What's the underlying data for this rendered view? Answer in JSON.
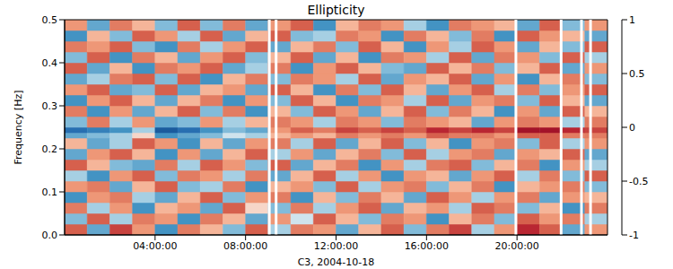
{
  "chart_data": {
    "type": "heatmap",
    "title": "Ellipticity",
    "x_label": "C3, 2004-10-18",
    "y_label": "Frequency [Hz]",
    "xlim": [
      0,
      24
    ],
    "xticks": [
      {
        "value": 4,
        "label": "04:00:00"
      },
      {
        "value": 8,
        "label": "08:00:00"
      },
      {
        "value": 12,
        "label": "12:00:00"
      },
      {
        "value": 16,
        "label": "16:00:00"
      },
      {
        "value": 20,
        "label": "20:00:00"
      }
    ],
    "ylim": [
      0,
      0.5
    ],
    "yticks": [
      {
        "value": 0,
        "label": "0.0"
      },
      0.1,
      0.2,
      0.3,
      0.4,
      0.5
    ],
    "colorbar": {
      "range": [
        -1,
        1
      ],
      "ticks": [
        -1,
        -0.5,
        0,
        0.5,
        1
      ]
    },
    "data_gaps": [
      9.05,
      9.35,
      19.95,
      21.95,
      22.85,
      23.25
    ],
    "cells": {
      "x_edges": [
        0,
        1,
        2,
        3,
        4,
        5,
        6,
        7,
        8,
        9,
        10,
        11,
        12,
        13,
        14,
        15,
        16,
        17,
        18,
        19,
        20,
        21,
        22,
        23,
        24
      ],
      "y_edges": [
        0,
        0.025,
        0.05,
        0.075,
        0.1,
        0.125,
        0.15,
        0.175,
        0.2,
        0.225,
        0.2375,
        0.25,
        0.275,
        0.3,
        0.325,
        0.35,
        0.375,
        0.4,
        0.425,
        0.45,
        0.475,
        0.5
      ],
      "values": [
        [
          0.5,
          -0.4,
          0.6,
          0.3,
          -0.5,
          0.4,
          0.2,
          -0.3,
          0.5,
          -0.2,
          0.4,
          0.3,
          -0.4,
          0.2,
          0.5,
          -0.3,
          0.4,
          0.6,
          -0.2,
          0.3,
          0.7,
          0.5,
          -0.4,
          0.3
        ],
        [
          -0.3,
          0.5,
          -0.2,
          0.4,
          0.3,
          -0.5,
          0.4,
          0.2,
          -0.4,
          0.3,
          -0.1,
          0.5,
          0.2,
          -0.3,
          0.4,
          0.3,
          -0.5,
          0.2,
          0.4,
          -0.3,
          0.5,
          0.3,
          0.4,
          -0.2
        ],
        [
          0.4,
          -0.2,
          0.3,
          -0.5,
          0.2,
          0.3,
          -0.4,
          0.5,
          0.1,
          -0.3,
          0.4,
          -0.2,
          0.3,
          0.5,
          -0.4,
          0.2,
          0.3,
          -0.2,
          0.5,
          0.4,
          -0.3,
          0.2,
          -0.5,
          0.4
        ],
        [
          -0.5,
          0.3,
          0.4,
          -0.2,
          -0.4,
          0.2,
          0.5,
          -0.3,
          0.3,
          0.4,
          -0.5,
          0.2,
          -0.3,
          0.4,
          0.2,
          -0.4,
          0.5,
          0.3,
          -0.2,
          0.3,
          0.4,
          -0.4,
          0.3,
          0.2
        ],
        [
          0.3,
          0.4,
          -0.4,
          0.2,
          0.5,
          -0.3,
          -0.2,
          0.4,
          -0.5,
          0.2,
          0.3,
          -0.3,
          0.5,
          -0.2,
          0.3,
          0.4,
          -0.3,
          0.2,
          0.4,
          -0.5,
          0.2,
          0.3,
          0.4,
          -0.3
        ],
        [
          -0.2,
          -0.5,
          0.3,
          0.5,
          -0.3,
          0.4,
          0.3,
          -0.2,
          0.4,
          -0.4,
          0.2,
          0.5,
          -0.2,
          0.3,
          -0.5,
          0.3,
          0.2,
          -0.4,
          0.3,
          0.5,
          -0.2,
          0.4,
          -0.3,
          0.5
        ],
        [
          0.5,
          0.2,
          -0.3,
          -0.4,
          0.4,
          -0.2,
          0.5,
          0.3,
          -0.3,
          0.5,
          -0.4,
          0.2,
          0.4,
          -0.5,
          0.3,
          -0.2,
          0.4,
          0.5,
          -0.3,
          0.2,
          0.4,
          -0.5,
          0.3,
          -0.2
        ],
        [
          -0.4,
          0.3,
          0.5,
          0.2,
          -0.5,
          0.3,
          -0.4,
          0.2,
          0.5,
          -0.2,
          0.3,
          -0.4,
          0.2,
          0.4,
          -0.3,
          0.5,
          -0.2,
          0.3,
          0.4,
          -0.4,
          0.3,
          0.2,
          0.5,
          -0.4
        ],
        [
          0.2,
          -0.4,
          -0.2,
          0.5,
          0.3,
          -0.5,
          0.2,
          -0.4,
          0.3,
          0.4,
          -0.2,
          0.5,
          -0.4,
          0.2,
          0.5,
          -0.3,
          0.2,
          -0.5,
          0.3,
          0.4,
          -0.3,
          0.5,
          -0.2,
          0.3
        ],
        [
          -0.4,
          -0.3,
          -0.2,
          0.1,
          -0.5,
          -0.4,
          -0.3,
          -0.1,
          -0.2,
          0.2,
          0.3,
          0.2,
          0.4,
          0.3,
          0.4,
          0.3,
          0.5,
          0.4,
          0.4,
          0.3,
          0.5,
          0.5,
          0.4,
          0.4
        ],
        [
          -0.7,
          -0.6,
          -0.5,
          -0.2,
          -0.8,
          -0.7,
          -0.5,
          -0.3,
          -0.4,
          0.3,
          0.5,
          0.4,
          0.6,
          0.5,
          0.6,
          0.5,
          0.7,
          0.6,
          0.7,
          0.6,
          0.8,
          0.8,
          0.7,
          0.6
        ],
        [
          -0.3,
          0.4,
          -0.2,
          0.3,
          -0.4,
          -0.3,
          0.3,
          -0.2,
          0.2,
          0.4,
          0.3,
          -0.2,
          0.4,
          0.3,
          -0.3,
          0.4,
          0.3,
          0.2,
          -0.4,
          0.3,
          0.4,
          0.3,
          -0.2,
          0.4
        ],
        [
          0.4,
          -0.5,
          0.3,
          -0.4,
          0.2,
          0.5,
          -0.3,
          0.4,
          -0.5,
          0.2,
          -0.3,
          0.5,
          0.3,
          -0.4,
          0.2,
          0.5,
          -0.3,
          0.4,
          0.2,
          -0.5,
          0.3,
          -0.4,
          0.5,
          0.2
        ],
        [
          -0.5,
          0.3,
          0.5,
          0.2,
          -0.4,
          0.2,
          0.4,
          -0.5,
          0.3,
          -0.3,
          0.5,
          0.2,
          -0.5,
          0.4,
          0.3,
          -0.2,
          0.5,
          -0.4,
          0.3,
          0.4,
          -0.3,
          0.5,
          0.2,
          -0.4
        ],
        [
          0.3,
          0.5,
          -0.4,
          -0.3,
          0.5,
          -0.4,
          0.2,
          0.3,
          -0.4,
          0.5,
          0.2,
          -0.5,
          0.4,
          -0.3,
          0.5,
          0.2,
          -0.4,
          0.3,
          0.5,
          -0.2,
          0.4,
          -0.3,
          0.3,
          0.5
        ],
        [
          -0.4,
          -0.2,
          0.4,
          0.5,
          -0.3,
          0.5,
          -0.5,
          0.2,
          0.4,
          -0.3,
          0.4,
          0.3,
          -0.2,
          0.5,
          -0.4,
          0.3,
          0.2,
          0.5,
          -0.4,
          0.3,
          -0.5,
          0.2,
          0.4,
          -0.3
        ],
        [
          0.5,
          -0.4,
          0.2,
          -0.5,
          0.4,
          0.3,
          0.5,
          -0.4,
          -0.2,
          0.4,
          -0.5,
          0.3,
          0.5,
          0.2,
          -0.3,
          -0.4,
          0.5,
          0.2,
          0.4,
          -0.3,
          0.2,
          0.5,
          -0.4,
          0.3
        ],
        [
          -0.3,
          0.5,
          -0.5,
          0.4,
          0.2,
          -0.4,
          0.3,
          0.5,
          -0.3,
          0.2,
          0.5,
          -0.4,
          0.2,
          -0.5,
          0.4,
          0.3,
          -0.2,
          0.5,
          -0.4,
          0.4,
          0.3,
          -0.3,
          0.5,
          -0.2
        ],
        [
          0.4,
          0.3,
          0.5,
          -0.3,
          -0.5,
          0.4,
          -0.2,
          0.3,
          0.5,
          -0.4,
          0.2,
          0.4,
          -0.3,
          0.5,
          0.2,
          -0.5,
          0.3,
          -0.2,
          0.5,
          0.3,
          -0.4,
          0.2,
          -0.3,
          0.5
        ],
        [
          -0.5,
          0.2,
          -0.3,
          0.5,
          0.3,
          -0.2,
          0.5,
          -0.4,
          0.2,
          0.5,
          -0.3,
          -0.2,
          0.4,
          0.3,
          -0.5,
          0.4,
          0.2,
          -0.3,
          0.4,
          -0.5,
          0.5,
          0.3,
          0.2,
          -0.4
        ],
        [
          0.3,
          -0.4,
          0.4,
          0.2,
          -0.3,
          0.5,
          -0.3,
          0.4,
          -0.4,
          0.3,
          0.5,
          -0.5,
          0.2,
          0.4,
          0.3,
          -0.2,
          -0.5,
          0.4,
          0.3,
          0.2,
          -0.4,
          0.5,
          -0.3,
          0.3
        ]
      ]
    }
  }
}
